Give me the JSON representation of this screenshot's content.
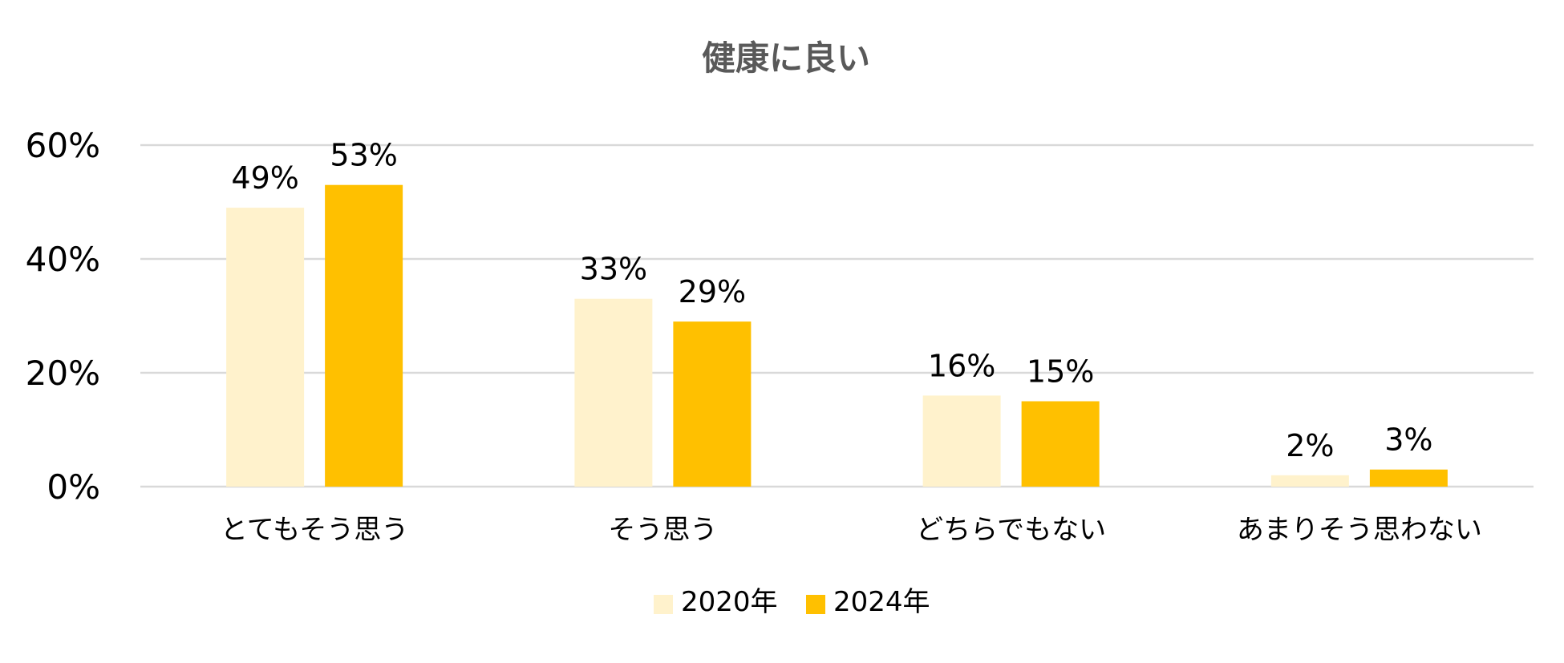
{
  "chart_data": {
    "type": "bar",
    "title": "健康に良い",
    "xlabel": "",
    "ylabel": "",
    "categories": [
      "とてもそう思う",
      "そう思う",
      "どちらでもない",
      "あまりそう思わない"
    ],
    "series": [
      {
        "name": "2020年",
        "values": [
          49,
          33,
          16,
          2
        ],
        "color": "#fff2cc"
      },
      {
        "name": "2024年",
        "values": [
          53,
          29,
          15,
          3
        ],
        "color": "#ffc000"
      }
    ],
    "ylim": [
      0,
      60
    ],
    "yticks": [
      0,
      20,
      40,
      60
    ],
    "ytick_labels": [
      "0%",
      "20%",
      "40%",
      "60%"
    ],
    "data_labels": [
      [
        "49%",
        "33%",
        "16%",
        "2%"
      ],
      [
        "53%",
        "29%",
        "15%",
        "3%"
      ]
    ],
    "grid": true,
    "legend": "bottom-center"
  }
}
